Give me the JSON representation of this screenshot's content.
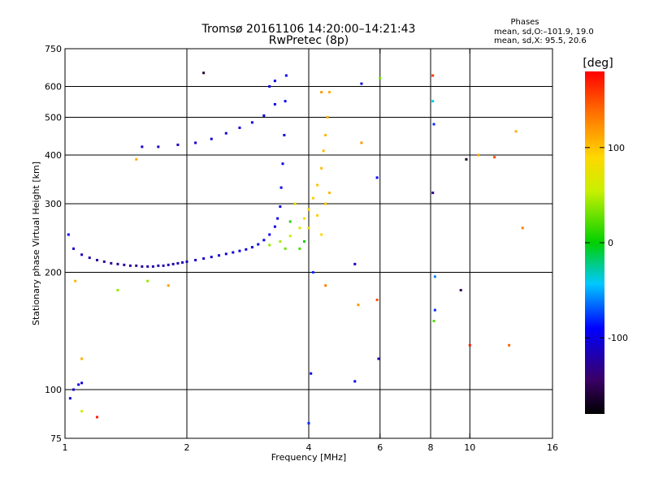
{
  "title": {
    "line1": "Tromsø 20161106 14:20:00–14:21:43",
    "line2": "RwPretec (8p)"
  },
  "stats": {
    "header": "Phases",
    "o_line": "mean, sd,O:–101.9, 19.0",
    "x_line": "mean, sd,X:  95.5, 20.6"
  },
  "colorbar": {
    "label": "[deg]",
    "range": [
      -180,
      180
    ],
    "ticks": [
      100,
      0,
      -100
    ]
  },
  "chart_data": {
    "type": "scatter",
    "xlabel": "Frequency [MHz]",
    "ylabel": "Stationary phase Virtual Height [km]",
    "xscale": "log",
    "yscale": "log",
    "xlim": [
      1,
      16
    ],
    "ylim": [
      75,
      750
    ],
    "xticks": [
      1,
      2,
      4,
      6,
      8,
      10,
      16
    ],
    "yticks": [
      75,
      100,
      200,
      300,
      400,
      500,
      600,
      750
    ],
    "grid_x": [
      2,
      4,
      6,
      8,
      10
    ],
    "grid_y": [
      100,
      200,
      300,
      400,
      500,
      600
    ],
    "color_quantity": "phase [deg]",
    "points": [
      [
        1.05,
        230,
        -110
      ],
      [
        1.1,
        222,
        -115
      ],
      [
        1.15,
        218,
        -120
      ],
      [
        1.2,
        215,
        -125
      ],
      [
        1.25,
        213,
        -128
      ],
      [
        1.3,
        211,
        -130
      ],
      [
        1.35,
        210,
        -128
      ],
      [
        1.4,
        209,
        -125
      ],
      [
        1.45,
        208,
        -130
      ],
      [
        1.5,
        208,
        -132
      ],
      [
        1.55,
        207,
        -128
      ],
      [
        1.6,
        207,
        -125
      ],
      [
        1.65,
        207,
        -122
      ],
      [
        1.7,
        208,
        -120
      ],
      [
        1.75,
        208,
        -118
      ],
      [
        1.8,
        209,
        -120
      ],
      [
        1.85,
        210,
        -118
      ],
      [
        1.9,
        211,
        -116
      ],
      [
        1.95,
        212,
        -115
      ],
      [
        2.0,
        213,
        -114
      ],
      [
        2.1,
        215,
        -112
      ],
      [
        2.2,
        217,
        -110
      ],
      [
        2.3,
        219,
        -108
      ],
      [
        2.4,
        221,
        -107
      ],
      [
        2.5,
        223,
        -106
      ],
      [
        2.6,
        225,
        -105
      ],
      [
        2.7,
        227,
        -104
      ],
      [
        2.8,
        229,
        -103
      ],
      [
        2.9,
        232,
        -102
      ],
      [
        3.0,
        236,
        -101
      ],
      [
        3.1,
        242,
        -100
      ],
      [
        3.2,
        250,
        -99
      ],
      [
        3.3,
        262,
        -98
      ],
      [
        3.35,
        275,
        -98
      ],
      [
        3.4,
        295,
        -97
      ],
      [
        3.42,
        330,
        -97
      ],
      [
        3.45,
        380,
        -96
      ],
      [
        3.48,
        450,
        -96
      ],
      [
        3.5,
        550,
        -95
      ],
      [
        3.52,
        640,
        -95
      ],
      [
        1.55,
        420,
        -110
      ],
      [
        1.7,
        420,
        -112
      ],
      [
        1.9,
        425,
        -112
      ],
      [
        2.1,
        430,
        -110
      ],
      [
        2.3,
        440,
        -108
      ],
      [
        2.5,
        455,
        -106
      ],
      [
        2.7,
        470,
        -105
      ],
      [
        2.9,
        485,
        -104
      ],
      [
        3.1,
        505,
        -103
      ],
      [
        3.3,
        540,
        -100
      ],
      [
        3.2,
        600,
        -100
      ],
      [
        3.3,
        620,
        -98
      ],
      [
        3.2,
        235,
        40
      ],
      [
        3.4,
        240,
        45
      ],
      [
        3.6,
        248,
        55
      ],
      [
        3.8,
        260,
        70
      ],
      [
        3.9,
        275,
        80
      ],
      [
        4.0,
        290,
        90
      ],
      [
        4.1,
        310,
        95
      ],
      [
        4.2,
        335,
        100
      ],
      [
        4.3,
        370,
        102
      ],
      [
        4.35,
        410,
        104
      ],
      [
        4.4,
        450,
        106
      ],
      [
        4.45,
        500,
        108
      ],
      [
        4.5,
        580,
        110
      ],
      [
        3.7,
        300,
        75
      ],
      [
        4.0,
        260,
        85
      ],
      [
        4.2,
        280,
        95
      ],
      [
        4.4,
        300,
        100
      ],
      [
        4.5,
        320,
        105
      ],
      [
        4.3,
        250,
        90
      ],
      [
        3.5,
        230,
        30
      ],
      [
        3.8,
        230,
        20
      ],
      [
        3.6,
        270,
        10
      ],
      [
        3.9,
        240,
        5
      ],
      [
        1.02,
        250,
        -90
      ],
      [
        1.05,
        100,
        -110
      ],
      [
        1.08,
        103,
        -100
      ],
      [
        1.1,
        104,
        -105
      ],
      [
        1.03,
        95,
        -110
      ],
      [
        1.1,
        120,
        110
      ],
      [
        1.06,
        190,
        105
      ],
      [
        1.1,
        88,
        60
      ],
      [
        1.2,
        85,
        170
      ],
      [
        1.35,
        180,
        40
      ],
      [
        1.5,
        390,
        110
      ],
      [
        1.6,
        190,
        40
      ],
      [
        1.8,
        185,
        115
      ],
      [
        2.2,
        650,
        -160
      ],
      [
        4.0,
        82,
        -80
      ],
      [
        4.05,
        110,
        -100
      ],
      [
        4.1,
        200,
        -80
      ],
      [
        4.4,
        185,
        130
      ],
      [
        4.3,
        580,
        120
      ],
      [
        5.2,
        105,
        -90
      ],
      [
        5.2,
        210,
        -110
      ],
      [
        5.4,
        610,
        -100
      ],
      [
        5.4,
        430,
        120
      ],
      [
        5.3,
        165,
        120
      ],
      [
        5.9,
        350,
        -90
      ],
      [
        5.9,
        170,
        150
      ],
      [
        5.95,
        120,
        -120
      ],
      [
        6.0,
        630,
        30
      ],
      [
        8.1,
        640,
        160
      ],
      [
        8.1,
        550,
        -40
      ],
      [
        8.15,
        480,
        -80
      ],
      [
        8.1,
        320,
        -130
      ],
      [
        8.2,
        195,
        -60
      ],
      [
        8.2,
        160,
        -80
      ],
      [
        8.15,
        150,
        20
      ],
      [
        9.5,
        180,
        -150
      ],
      [
        9.8,
        390,
        -170
      ],
      [
        10.0,
        130,
        170
      ],
      [
        10.5,
        400,
        110
      ],
      [
        11.5,
        395,
        150
      ],
      [
        12.5,
        130,
        140
      ],
      [
        13.0,
        460,
        110
      ],
      [
        13.5,
        260,
        130
      ]
    ]
  }
}
